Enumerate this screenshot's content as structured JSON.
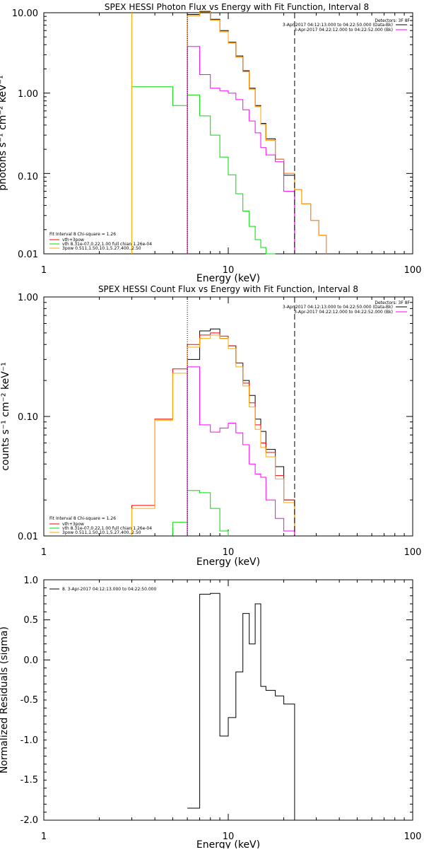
{
  "chart_data": [
    {
      "type": "line",
      "title": "SPEX HESSI Photon Flux vs Energy with Fit Function, Interval 8",
      "xlabel": "Energy (keV)",
      "ylabel": "photons s⁻¹ cm⁻² keV⁻¹",
      "xscale": "log",
      "yscale": "log",
      "xlim": [
        1,
        100
      ],
      "ylim": [
        0.01,
        10
      ],
      "x_ticks": [
        "1",
        "10",
        "100"
      ],
      "y_ticks": [
        "0.01",
        "0.10",
        "1.00",
        "10.00"
      ],
      "grid": false,
      "legend_top_right": [
        "Detectors: 3F 8F",
        "3-Apr-2017 04:12:13.000 to 04:22:50.000 (Data-Bk)",
        "3-Apr-2017 04:22:12.000 to 04:22:52.000 (Bk)"
      ],
      "legend_bottom_left_header": "Fit Interval 8   Chi-square = 1.26",
      "legend_bottom_left": [
        "vth+3pow",
        "vth 8.31e-07,0.22,1.00  full chian 1.26e-04",
        "3pow 0.511,1.50,10.1,5.27,400.,2.50"
      ],
      "fit_range_lines": [
        6.0,
        22.9
      ],
      "edges": [
        3.0,
        4.0,
        5.0,
        6.0,
        7.0,
        8.0,
        9.0,
        10.0,
        11.0,
        12.0,
        13.0,
        14.0,
        15.0,
        16.0,
        18.0,
        20.0,
        22.9,
        25.0,
        28.0,
        31.0,
        34.0
      ],
      "series": [
        {
          "name": "Data-Bk",
          "color": "#000000",
          "values": [
            null,
            null,
            null,
            9.5,
            10.4,
            8.3,
            6.0,
            4.3,
            2.9,
            1.9,
            1.15,
            0.7,
            0.42,
            0.27,
            0.15,
            0.095,
            null,
            null,
            null,
            null
          ]
        },
        {
          "name": "vth+3pow",
          "color": "#ff0000",
          "values": [
            null,
            null,
            null,
            9.2,
            10.2,
            8.1,
            5.8,
            4.2,
            2.8,
            1.85,
            1.12,
            0.68,
            0.41,
            0.26,
            0.15,
            0.1,
            0.063,
            0.042,
            0.026,
            0.017
          ]
        },
        {
          "name": "vth",
          "color": "#00dd00",
          "values": [
            1.2,
            1.2,
            0.7,
            0.95,
            0.52,
            0.3,
            0.16,
            0.096,
            0.056,
            0.034,
            0.022,
            0.015,
            0.012,
            0.01,
            null,
            null,
            null,
            null,
            null,
            null
          ]
        },
        {
          "name": "3pow",
          "color": "#ffaa00",
          "values": [
            null,
            null,
            null,
            9.2,
            10.2,
            8.1,
            5.8,
            4.2,
            2.8,
            1.85,
            1.12,
            0.68,
            0.41,
            0.26,
            0.15,
            0.1,
            0.063,
            0.042,
            0.026,
            0.017
          ]
        },
        {
          "name": "Bk",
          "color": "#ff00ff",
          "values": [
            null,
            null,
            null,
            3.8,
            1.7,
            1.15,
            1.07,
            1.0,
            0.83,
            0.62,
            0.45,
            0.32,
            0.21,
            0.17,
            0.14,
            0.06,
            null,
            null,
            null,
            null
          ]
        }
      ]
    },
    {
      "type": "line",
      "title": "SPEX HESSI Count Flux vs Energy with Fit Function, Interval 8",
      "xlabel": "Energy (keV)",
      "ylabel": "counts s⁻¹ cm⁻² keV⁻¹",
      "xscale": "log",
      "yscale": "log",
      "xlim": [
        1,
        100
      ],
      "ylim": [
        0.01,
        1
      ],
      "x_ticks": [
        "1",
        "10",
        "100"
      ],
      "y_ticks": [
        "0.01",
        "0.10",
        "1.00"
      ],
      "grid": false,
      "legend_top_right": [
        "Detectors: 3F 8F",
        "3-Apr-2017 04:12:13.000 to 04:22:50.000 (Data-Bk)",
        "3-Apr-2017 04:22:12.000 to 04:22:52.000 (Bk)"
      ],
      "legend_bottom_left_header": "Fit Interval 8   Chi-square = 1.26",
      "legend_bottom_left": [
        "vth+3pow",
        "vth 8.31e-07,0.22,1.00  full chian 1.26e-04",
        "3pow 0.511,1.50,10.1,5.27,400.,2.50"
      ],
      "fit_range_lines": [
        6.0,
        22.9
      ],
      "edges": [
        3.0,
        4.0,
        5.0,
        6.0,
        7.0,
        8.0,
        9.0,
        10.0,
        11.0,
        12.0,
        13.0,
        14.0,
        15.0,
        16.0,
        18.0,
        20.0,
        22.9
      ],
      "series": [
        {
          "name": "Data-Bk",
          "color": "#000000",
          "values": [
            null,
            null,
            null,
            0.3,
            0.52,
            0.54,
            0.45,
            0.39,
            0.28,
            0.2,
            0.15,
            0.095,
            0.075,
            0.053,
            0.038,
            0.02
          ]
        },
        {
          "name": "vth+3pow",
          "color": "#ff0000",
          "values": [
            0.018,
            0.095,
            0.25,
            0.4,
            0.48,
            0.5,
            0.47,
            0.39,
            0.28,
            0.19,
            0.13,
            0.085,
            0.06,
            0.05,
            0.032,
            0.02
          ]
        },
        {
          "name": "vth",
          "color": "#00dd00",
          "values": [
            null,
            null,
            0.013,
            0.024,
            0.023,
            0.017,
            0.011,
            null,
            null,
            null,
            null,
            null,
            null,
            null,
            null,
            null
          ]
        },
        {
          "name": "3pow",
          "color": "#ffaa00",
          "values": [
            0.017,
            0.093,
            0.23,
            0.38,
            0.45,
            0.48,
            0.45,
            0.37,
            0.26,
            0.18,
            0.12,
            0.078,
            0.055,
            0.046,
            0.03,
            0.019
          ]
        },
        {
          "name": "Bk",
          "color": "#ff00ff",
          "values": [
            null,
            null,
            null,
            0.26,
            0.085,
            0.074,
            0.08,
            0.088,
            0.073,
            0.058,
            0.04,
            0.033,
            0.031,
            0.02,
            0.014,
            0.011
          ]
        }
      ]
    },
    {
      "type": "line",
      "title": "",
      "xlabel": "Energy (keV)",
      "ylabel": "Normalized Residuals (sigma)",
      "xscale": "log",
      "yscale": "linear",
      "xlim": [
        1,
        100
      ],
      "ylim": [
        -2.0,
        1.0
      ],
      "x_ticks": [
        "1",
        "10",
        "100"
      ],
      "y_ticks": [
        "-2.0",
        "-1.5",
        "-1.0",
        "-0.5",
        "0.0",
        "0.5",
        "1.0"
      ],
      "grid": false,
      "legend": "8.  3-Apr-2017 04:12:13.000 to 04:22:50.000",
      "edges": [
        6.0,
        7.0,
        8.0,
        9.0,
        10.0,
        11.0,
        12.0,
        13.0,
        14.0,
        15.0,
        16.0,
        18.0,
        20.0,
        22.9
      ],
      "series": [
        {
          "color": "#000000",
          "values": [
            -1.85,
            0.82,
            0.83,
            -0.95,
            -0.72,
            -0.15,
            0.58,
            0.2,
            0.7,
            -0.33,
            -0.38,
            -0.45,
            -0.55
          ]
        }
      ]
    }
  ]
}
